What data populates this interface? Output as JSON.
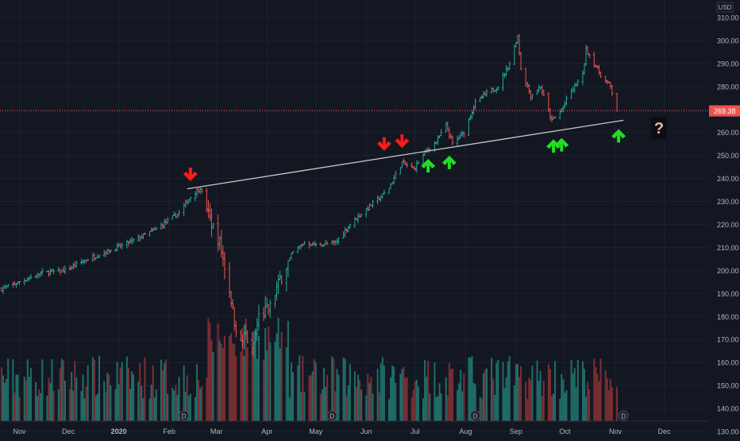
{
  "chart_data": {
    "type": "ohlc",
    "currency": "USD",
    "last_price_label": "269.38",
    "question_mark": "?",
    "colors": {
      "background": "#131722",
      "grid": "#1e222d",
      "up": "#26a69a",
      "down": "#ef5350",
      "vol_up": "#1f6e69",
      "vol_down": "#7a2f33",
      "price_line": "#ef5350",
      "trendline": "#c8c8c8",
      "arrow_down": "#ff1a1a",
      "arrow_up": "#22dd22",
      "axis_text": "#b2b5be"
    },
    "y_axis": {
      "ticks": [
        "310.00",
        "300.00",
        "290.00",
        "280.00",
        "270.00",
        "260.00",
        "250.00",
        "240.00",
        "230.00",
        "220.00",
        "210.00",
        "200.00",
        "190.00",
        "180.00",
        "170.00",
        "160.00",
        "150.00",
        "140.00",
        "130.00"
      ],
      "range": [
        120,
        315
      ]
    },
    "x_axis": {
      "labels": [
        "Nov",
        "Dec",
        "2020",
        "Feb",
        "Mar",
        "Apr",
        "May",
        "Jun",
        "Jul",
        "Aug",
        "Sep",
        "Oct",
        "Nov",
        "Dec"
      ],
      "range": [
        "2019-10-21",
        "2020-12-31"
      ]
    },
    "dividend_markers": [
      {
        "date": "2020-02-10",
        "label": "D"
      },
      {
        "date": "2020-05-11",
        "label": "D"
      },
      {
        "date": "2020-08-07",
        "label": "D"
      },
      {
        "date": "2020-11-06",
        "label": "D"
      }
    ],
    "trendline": {
      "start": {
        "date": "2020-02-12",
        "price": 235.5
      },
      "end": {
        "date": "2020-11-06",
        "price": 265.3
      }
    },
    "last_price": 269.38,
    "anchors": [
      [
        "2019-10-21",
        192
      ],
      [
        "2019-11-01",
        195
      ],
      [
        "2019-11-15",
        199
      ],
      [
        "2019-11-29",
        200
      ],
      [
        "2019-12-13",
        205
      ],
      [
        "2019-12-31",
        210
      ],
      [
        "2020-01-10",
        213
      ],
      [
        "2020-01-24",
        218
      ],
      [
        "2020-02-07",
        225
      ],
      [
        "2020-02-14",
        232
      ],
      [
        "2020-02-20",
        236
      ],
      [
        "2020-02-26",
        222
      ],
      [
        "2020-03-03",
        212
      ],
      [
        "2020-03-09",
        192
      ],
      [
        "2020-03-12",
        178
      ],
      [
        "2020-03-16",
        168
      ],
      [
        "2020-03-19",
        172
      ],
      [
        "2020-03-23",
        164
      ],
      [
        "2020-03-27",
        180
      ],
      [
        "2020-04-03",
        184
      ],
      [
        "2020-04-09",
        196
      ],
      [
        "2020-04-17",
        208
      ],
      [
        "2020-04-24",
        212
      ],
      [
        "2020-05-01",
        211
      ],
      [
        "2020-05-13",
        212
      ],
      [
        "2020-05-22",
        220
      ],
      [
        "2020-06-03",
        228
      ],
      [
        "2020-06-10",
        232
      ],
      [
        "2020-06-15",
        236
      ],
      [
        "2020-06-23",
        247
      ],
      [
        "2020-06-30",
        244
      ],
      [
        "2020-07-08",
        252
      ],
      [
        "2020-07-14",
        256
      ],
      [
        "2020-07-20",
        263
      ],
      [
        "2020-07-24",
        255
      ],
      [
        "2020-07-31",
        260
      ],
      [
        "2020-08-07",
        273
      ],
      [
        "2020-08-14",
        277
      ],
      [
        "2020-08-21",
        280
      ],
      [
        "2020-08-28",
        290
      ],
      [
        "2020-09-02",
        302
      ],
      [
        "2020-09-04",
        288
      ],
      [
        "2020-09-10",
        276
      ],
      [
        "2020-09-16",
        280
      ],
      [
        "2020-09-23",
        265
      ],
      [
        "2020-09-29",
        270
      ],
      [
        "2020-10-05",
        278
      ],
      [
        "2020-10-12",
        285
      ],
      [
        "2020-10-14",
        296
      ],
      [
        "2020-10-19",
        290
      ],
      [
        "2020-10-23",
        285
      ],
      [
        "2020-10-29",
        280
      ],
      [
        "2020-11-02",
        269.38
      ]
    ],
    "annotations": {
      "red_down_arrows": [
        "2020-02-14",
        "2020-06-12",
        "2020-06-23"
      ],
      "green_up_arrows": [
        "2020-07-09",
        "2020-07-22",
        "2020-09-24",
        "2020-09-29",
        "2020-11-03"
      ]
    }
  }
}
